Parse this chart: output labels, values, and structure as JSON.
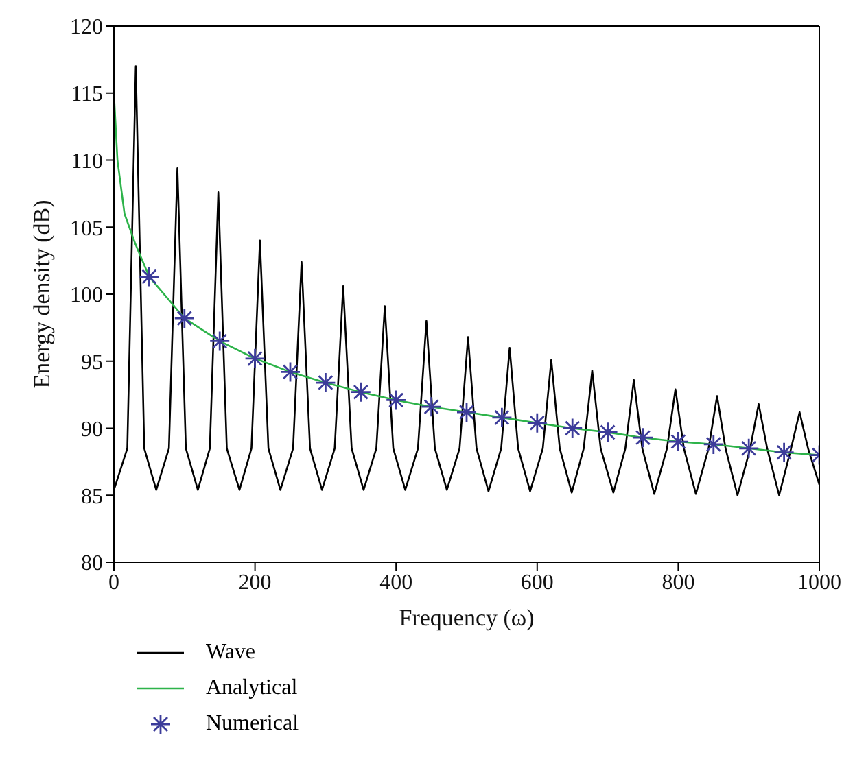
{
  "chart_data": {
    "type": "line",
    "xlabel": "Frequency (ω)",
    "ylabel": "Energy density (dB)",
    "xlim": [
      0,
      1000
    ],
    "ylim": [
      80,
      120
    ],
    "xticks": [
      0,
      200,
      400,
      600,
      800,
      1000
    ],
    "yticks": [
      80,
      85,
      90,
      95,
      100,
      105,
      110,
      115,
      120
    ],
    "grid": false,
    "legend": "bottom left",
    "series": [
      {
        "name": "Wave",
        "color": "#000000",
        "x": [
          0,
          19,
          31,
          43,
          60,
          78,
          90,
          102,
          119,
          136,
          148,
          160,
          178,
          195,
          207,
          219,
          236,
          254,
          266,
          278,
          295,
          313,
          325,
          337,
          354,
          372,
          384,
          396,
          413,
          431,
          443,
          455,
          472,
          490,
          502,
          514,
          531,
          549,
          561,
          573,
          590,
          608,
          620,
          632,
          649,
          666,
          678,
          690,
          708,
          725,
          737,
          749,
          766,
          784,
          796,
          808,
          825,
          843,
          855,
          867,
          884,
          902,
          914,
          926,
          943,
          960,
          972,
          984,
          1000
        ],
        "values": [
          85.4,
          88.5,
          117.0,
          88.5,
          85.4,
          88.5,
          109.4,
          88.5,
          85.4,
          88.5,
          107.6,
          88.5,
          85.4,
          88.5,
          104.0,
          88.5,
          85.4,
          88.5,
          102.4,
          88.5,
          85.4,
          88.5,
          100.6,
          88.5,
          85.4,
          88.5,
          99.1,
          88.5,
          85.4,
          88.5,
          98.0,
          88.5,
          85.4,
          88.5,
          96.8,
          88.5,
          85.3,
          88.5,
          96.0,
          88.5,
          85.3,
          88.5,
          95.1,
          88.5,
          85.2,
          88.5,
          94.3,
          88.5,
          85.2,
          88.5,
          93.6,
          88.5,
          85.1,
          88.5,
          92.9,
          88.5,
          85.1,
          88.5,
          92.4,
          88.5,
          85.0,
          88.5,
          91.8,
          88.5,
          85.0,
          88.5,
          91.2,
          88.5,
          85.8
        ]
      },
      {
        "name": "Analytical",
        "color": "#2db34a",
        "x": [
          0,
          5,
          15,
          30,
          50,
          100,
          150,
          200,
          250,
          300,
          350,
          400,
          450,
          500,
          550,
          600,
          650,
          700,
          750,
          800,
          850,
          900,
          950,
          1000
        ],
        "values": [
          115,
          110,
          106,
          103.8,
          101.3,
          98.2,
          96.5,
          95.2,
          94.2,
          93.4,
          92.7,
          92.1,
          91.6,
          91.2,
          90.8,
          90.4,
          90.0,
          89.7,
          89.3,
          89.0,
          88.8,
          88.5,
          88.2,
          88.0
        ]
      },
      {
        "name": "Numerical",
        "type": "scatter",
        "marker": "cross",
        "color": "#3c3c9a",
        "x": [
          50,
          100,
          150,
          200,
          250,
          300,
          350,
          400,
          450,
          500,
          550,
          600,
          650,
          700,
          750,
          800,
          850,
          900,
          950,
          1000
        ],
        "values": [
          101.3,
          98.2,
          96.5,
          95.2,
          94.2,
          93.4,
          92.7,
          92.1,
          91.6,
          91.2,
          90.8,
          90.4,
          90.0,
          89.7,
          89.3,
          89.0,
          88.8,
          88.5,
          88.2,
          88.0
        ]
      }
    ]
  }
}
